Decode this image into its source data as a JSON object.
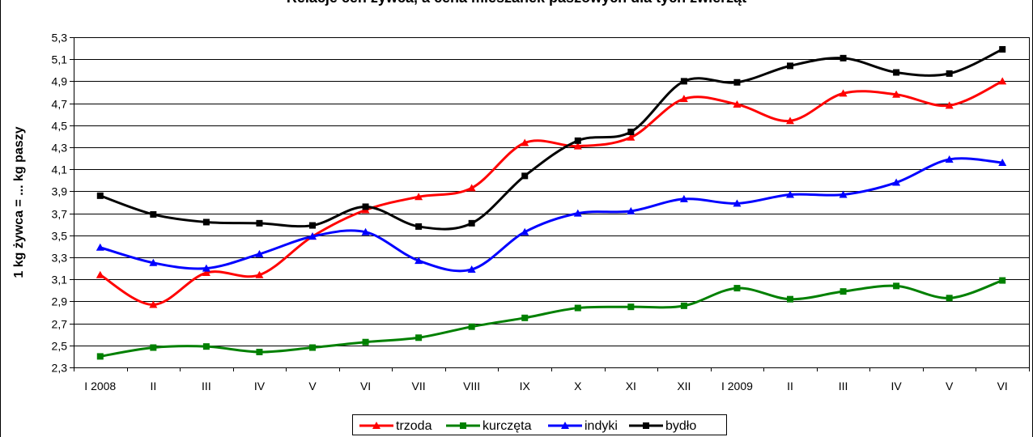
{
  "chart_data": {
    "type": "line",
    "title": "Relacje cen żywca, a cena mieszanek paszowych dla tych zwierząt",
    "xlabel": "",
    "ylabel": "1 kg żywca = ... kg paszy",
    "ylim": [
      2.3,
      5.3
    ],
    "yticks": [
      "2,3",
      "2,5",
      "2,7",
      "2,9",
      "3,1",
      "3,3",
      "3,5",
      "3,7",
      "3,9",
      "4,1",
      "4,3",
      "4,5",
      "4,7",
      "4,9",
      "5,1",
      "5,3"
    ],
    "categories": [
      "I 2008",
      "II",
      "III",
      "IV",
      "V",
      "VI",
      "VII",
      "VIII",
      "IX",
      "X",
      "XI",
      "XII",
      "I 2009",
      "II",
      "III",
      "IV",
      "V",
      "VI"
    ],
    "grid": true,
    "legend_position": "bottom",
    "series": [
      {
        "name": "trzoda",
        "color": "#ff0000",
        "marker": "triangle",
        "values": [
          3.14,
          2.87,
          3.16,
          3.14,
          3.49,
          3.73,
          3.85,
          3.93,
          4.34,
          4.31,
          4.39,
          4.74,
          4.69,
          4.54,
          4.79,
          4.78,
          4.68,
          4.9
        ]
      },
      {
        "name": "kurczęta",
        "color": "#008000",
        "marker": "square",
        "values": [
          2.4,
          2.48,
          2.49,
          2.44,
          2.48,
          2.53,
          2.57,
          2.67,
          2.75,
          2.84,
          2.85,
          2.86,
          3.02,
          2.92,
          2.99,
          3.04,
          2.93,
          3.09
        ]
      },
      {
        "name": "indyki",
        "color": "#0000ff",
        "marker": "triangle",
        "values": [
          3.39,
          3.25,
          3.2,
          3.33,
          3.49,
          3.53,
          3.27,
          3.19,
          3.53,
          3.7,
          3.72,
          3.83,
          3.79,
          3.87,
          3.87,
          3.98,
          4.19,
          4.16
        ]
      },
      {
        "name": "bydło",
        "color": "#000000",
        "marker": "square",
        "values": [
          3.86,
          3.69,
          3.62,
          3.61,
          3.59,
          3.76,
          3.58,
          3.61,
          4.04,
          4.36,
          4.44,
          4.9,
          4.89,
          5.04,
          5.11,
          4.98,
          4.97,
          5.19
        ]
      }
    ]
  }
}
